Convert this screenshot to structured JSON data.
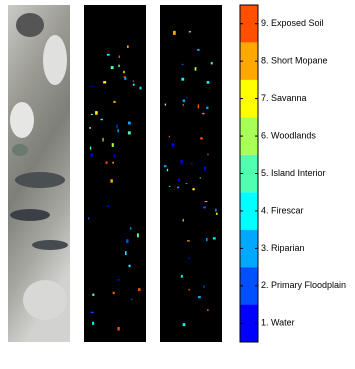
{
  "legend": {
    "classes": [
      {
        "label": "1. Water",
        "color": "#0000ff"
      },
      {
        "label": "2. Primary Floodplain",
        "color": "#0050ff"
      },
      {
        "label": "3. Riparian",
        "color": "#00a8ff"
      },
      {
        "label": "4. Firescar",
        "color": "#00ffff"
      },
      {
        "label": "5. Island Interior",
        "color": "#50ffaf"
      },
      {
        "label": "6. Woodlands",
        "color": "#a8ff58"
      },
      {
        "label": "7. Savanna",
        "color": "#ffff00"
      },
      {
        "label": "8. Short Mopane",
        "color": "#ffa800"
      },
      {
        "label": "9. Exposed Soil",
        "color": "#ff5000"
      }
    ]
  }
}
